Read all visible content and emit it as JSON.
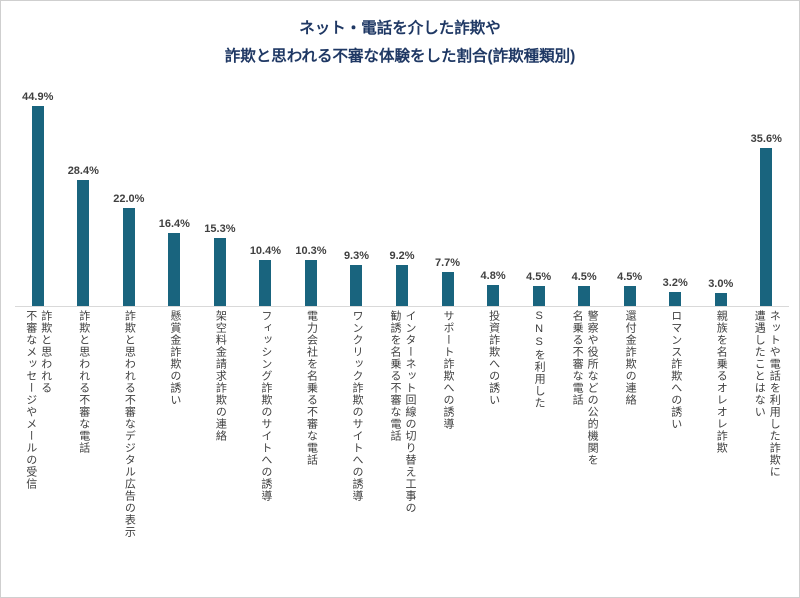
{
  "title": {
    "line1": "ネット・電話を介した詐欺や",
    "line2": "詐欺と思われる不審な体験をした割合(詐欺種類別)"
  },
  "colors": {
    "bar": "#19647e",
    "title": "#1f3864",
    "value_label": "#404040",
    "axis_line": "#d9d9d9"
  },
  "chart_data": {
    "type": "bar",
    "title": "ネット・電話を介した詐欺や 詐欺と思われる不審な体験をした割合(詐欺種類別)",
    "xlabel": "",
    "ylabel": "",
    "unit": "%",
    "ylim": [
      0,
      50
    ],
    "grid": false,
    "legend": "none",
    "bar_color": "#19647e",
    "categories": [
      "詐欺と思われる\n不審なメッセージやメールの受信",
      "詐欺と思われる不審な電話",
      "詐欺と思われる不審なデジタル広告の表示",
      "懸賞金詐欺の誘い",
      "架空料金請求詐欺の連絡",
      "フィッシング詐欺のサイトへの誘導",
      "電力会社を名乗る不審な電話",
      "ワンクリック詐欺のサイトへの誘導",
      "インターネット回線の切り替え工事の\n勧誘を名乗る不審な電話",
      "サポート詐欺への誘導",
      "投資詐欺への誘い",
      "SNSを利用した",
      "警察や役所などの公的機関を\n名乗る不審な電話",
      "還付金詐欺の連絡",
      "ロマンス詐欺への誘い",
      "親族を名乗るオレオレ詐欺",
      "ネットや電話を利用した詐欺に\n遭遇したことはない"
    ],
    "values": [
      44.9,
      28.4,
      22.0,
      16.4,
      15.3,
      10.4,
      10.3,
      9.3,
      9.2,
      7.7,
      4.8,
      4.5,
      4.5,
      4.5,
      3.2,
      3.0,
      35.6
    ],
    "value_labels": [
      "44.9%",
      "28.4%",
      "22.0%",
      "16.4%",
      "15.3%",
      "10.4%",
      "10.3%",
      "9.3%",
      "9.2%",
      "7.7%",
      "4.8%",
      "4.5%",
      "4.5%",
      "4.5%",
      "3.2%",
      "3.0%",
      "35.6%"
    ]
  }
}
